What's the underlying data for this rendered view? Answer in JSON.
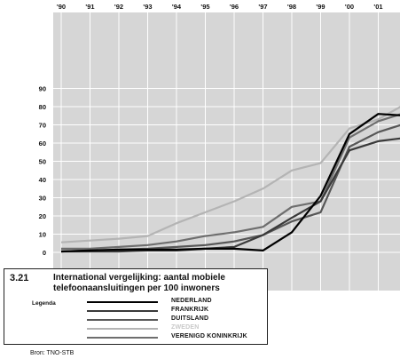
{
  "figure": {
    "number": "3.21",
    "title": "International vergelijking: aantal mobiele telefoonaansluitingen per 100 inwoners",
    "legend_title": "Legenda",
    "source": "Bron: TNO-STB"
  },
  "colors": {
    "plot_background": "#d6d6d6",
    "gridline": "#ffffff"
  },
  "chart_data": {
    "type": "line",
    "title": "International vergelijking: aantal mobiele telefoonaansluitingen per 100 inwoners",
    "x": [
      "'90",
      "'91",
      "'92",
      "'93",
      "'94",
      "'95",
      "'96",
      "'97",
      "'98",
      "'99",
      "'00",
      "'01",
      "'02"
    ],
    "x_tick_labels": [
      "'90",
      "'91",
      "'92",
      "'93",
      "'94",
      "'95",
      "'96",
      "'97",
      "'98",
      "'99",
      "'00",
      "'01",
      "'0"
    ],
    "y_ticks": [
      "90",
      "80",
      "70",
      "60",
      "50",
      "40",
      "30",
      "20",
      "10",
      "0"
    ],
    "ylim": [
      0,
      90
    ],
    "grid": true,
    "legend_position": "bottom-left",
    "series": [
      {
        "name": "NEDERLAND",
        "color": "#000000",
        "values": [
          0.5,
          1,
          1.5,
          1.5,
          1.5,
          2,
          2,
          1,
          11,
          31,
          65,
          76,
          75
        ]
      },
      {
        "name": "FRANKRIJK",
        "color": "#3a3a3a",
        "values": [
          0.5,
          0.5,
          0.5,
          1,
          1,
          2,
          3,
          9.5,
          19,
          28,
          56,
          61,
          63
        ]
      },
      {
        "name": "DUITSLAND",
        "color": "#575757",
        "values": [
          0.5,
          1,
          1.5,
          2,
          3,
          4,
          6,
          9.5,
          17,
          22,
          58,
          66,
          71
        ]
      },
      {
        "name": "ZWEDEN",
        "color": "#b4b4b4",
        "values": [
          5.5,
          6.5,
          7.5,
          9,
          16,
          22,
          28,
          35,
          45,
          49,
          68,
          73,
          82
        ]
      },
      {
        "name": "VERENIGD KONINKRIJK",
        "color": "#6e6e6e",
        "values": [
          2,
          2,
          3,
          4,
          6,
          9,
          11,
          14,
          25,
          28,
          63,
          72,
          77
        ]
      }
    ]
  }
}
